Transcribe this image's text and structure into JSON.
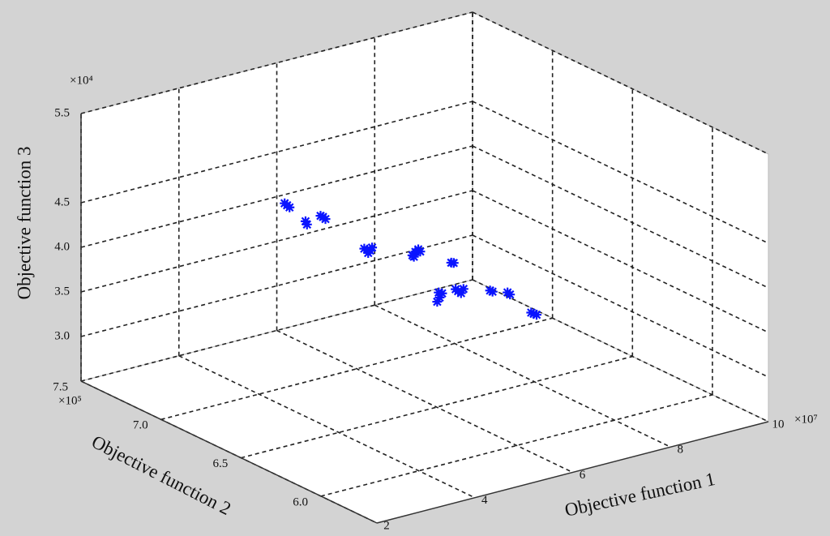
{
  "chart_data": {
    "type": "scatter3d",
    "xlabel": "Objective function 1",
    "ylabel": "Objective function 2",
    "zlabel": "Objective function 3",
    "x_multiplier": "×10⁷",
    "y_multiplier": "×10⁵",
    "z_multiplier": "×10⁴",
    "xlim": [
      2,
      10
    ],
    "ylim": [
      5.65,
      7.5
    ],
    "zlim": [
      2.5,
      5.5
    ],
    "xticks": [
      2,
      4,
      6,
      8,
      10
    ],
    "yticks": [
      {
        "value": 6,
        "label": "6.0"
      },
      {
        "value": 6.5,
        "label": "6.5"
      },
      {
        "value": 7,
        "label": "7.0"
      },
      {
        "value": 7.5,
        "label": "7.5"
      }
    ],
    "zticks": [
      {
        "value": 3,
        "label": "3.0"
      },
      {
        "value": 3.5,
        "label": "3.5"
      },
      {
        "value": 4,
        "label": "4.0"
      },
      {
        "value": 4.5,
        "label": "4.5"
      },
      {
        "value": 5.5,
        "label": "5.5"
      }
    ],
    "grid": true,
    "series": [
      {
        "color": "#0a14ff",
        "x": [
          5.23,
          5.18,
          5.28,
          5.28,
          5.31,
          5.31,
          5.36,
          5.26,
          5.56,
          5.5,
          5.62,
          5.66,
          5.58,
          5.89,
          5.83,
          5.95,
          5.99,
          5.86,
          5.97,
          6.02,
          6.06,
          6.01,
          6.11,
          6.04,
          6.11,
          6.17,
          6.06,
          6.22,
          6.11,
          6.16,
          6.14,
          6.19,
          6.02,
          6.08,
          5.97
        ],
        "y": [
          7.2,
          7.2,
          7.2,
          7.1,
          7.1,
          7.0,
          7.0,
          7.0,
          6.8,
          6.8,
          6.8,
          6.8,
          6.8,
          6.6,
          6.6,
          6.6,
          6.6,
          6.6,
          6.4,
          6.4,
          6.5,
          6.5,
          6.5,
          6.5,
          6.4,
          6.4,
          6.4,
          6.4,
          6.2,
          6.2,
          6.1,
          6.1,
          5.9,
          5.9,
          5.9
        ],
        "z": [
          4.27,
          4.3,
          4.24,
          4.17,
          4.13,
          4.3,
          4.27,
          4.32,
          4.07,
          4.09,
          4.05,
          4.08,
          4.03,
          4.17,
          4.14,
          4.19,
          4.16,
          4.12,
          4.21,
          4.2,
          3.72,
          3.68,
          3.76,
          3.78,
          3.87,
          3.84,
          3.9,
          3.88,
          4.05,
          4.03,
          4.11,
          4.08,
          4.06,
          4.04,
          4.08
        ]
      }
    ]
  }
}
